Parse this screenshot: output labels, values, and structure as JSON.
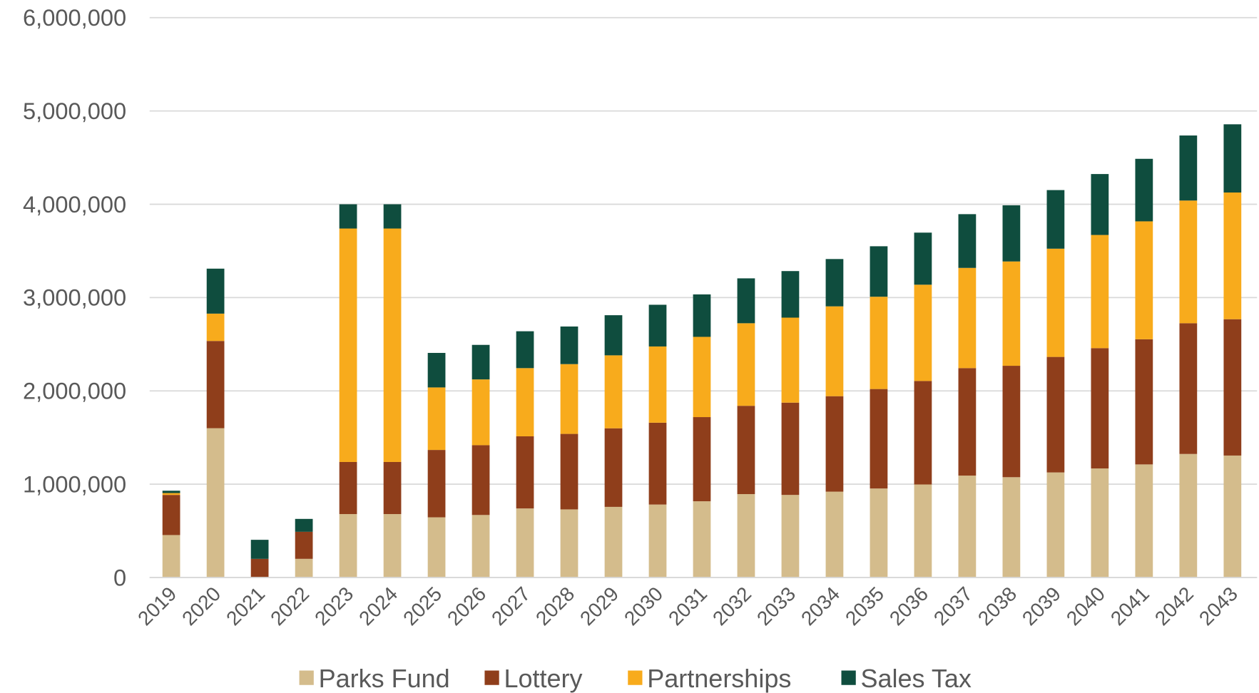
{
  "chart_data": {
    "type": "stacked_bar",
    "categories": [
      "2019",
      "2020",
      "2021",
      "2022",
      "2023",
      "2024",
      "2025",
      "2026",
      "2027",
      "2028",
      "2029",
      "2030",
      "2031",
      "2032",
      "2033",
      "2034",
      "2035",
      "2036",
      "2037",
      "2038",
      "2039",
      "2040",
      "2041",
      "2042",
      "2043"
    ],
    "series": [
      {
        "name": "Parks Fund",
        "color": "#d4bc8c",
        "values": [
          455000,
          1600000,
          0,
          200000,
          680000,
          680000,
          645000,
          670000,
          740000,
          730000,
          757000,
          782000,
          817000,
          894000,
          885000,
          920000,
          954000,
          997000,
          1092000,
          1075000,
          1126000,
          1169000,
          1212000,
          1324000,
          1307000
        ]
      },
      {
        "name": "Lottery",
        "color": "#8f3e1b",
        "values": [
          430000,
          935000,
          200000,
          290000,
          558000,
          558000,
          722000,
          748000,
          773000,
          809000,
          842000,
          877000,
          902000,
          946000,
          989000,
          1023000,
          1066000,
          1109000,
          1152000,
          1194000,
          1238000,
          1289000,
          1341000,
          1401000,
          1461000
        ]
      },
      {
        "name": "Partnerships",
        "color": "#f8ab1c",
        "values": [
          20000,
          293000,
          0,
          0,
          2502000,
          2502000,
          670000,
          705000,
          731000,
          748000,
          782000,
          817000,
          860000,
          885000,
          911000,
          963000,
          989000,
          1032000,
          1074000,
          1118000,
          1160000,
          1213000,
          1264000,
          1315000,
          1358000
        ]
      },
      {
        "name": "Sales Tax",
        "color": "#0f4d3e",
        "values": [
          25000,
          482000,
          204000,
          138000,
          260000,
          260000,
          370000,
          370000,
          395000,
          403000,
          430000,
          447000,
          455000,
          481000,
          499000,
          507000,
          541000,
          558000,
          576000,
          602000,
          628000,
          653000,
          670000,
          697000,
          731000
        ]
      }
    ],
    "ylim": [
      0,
      6000000
    ],
    "yticks": [
      0,
      {
        "value": 1000000,
        "label": "1,000,000"
      },
      {
        "value": 2000000,
        "label": "2,000,000"
      },
      {
        "value": 3000000,
        "label": "3,000,000"
      },
      {
        "value": 4000000,
        "label": "4,000,000"
      },
      {
        "value": 5000000,
        "label": "5,000,000"
      },
      {
        "value": 6000000,
        "label": "6,000,000"
      }
    ],
    "grid": true,
    "legend": "bottom"
  }
}
